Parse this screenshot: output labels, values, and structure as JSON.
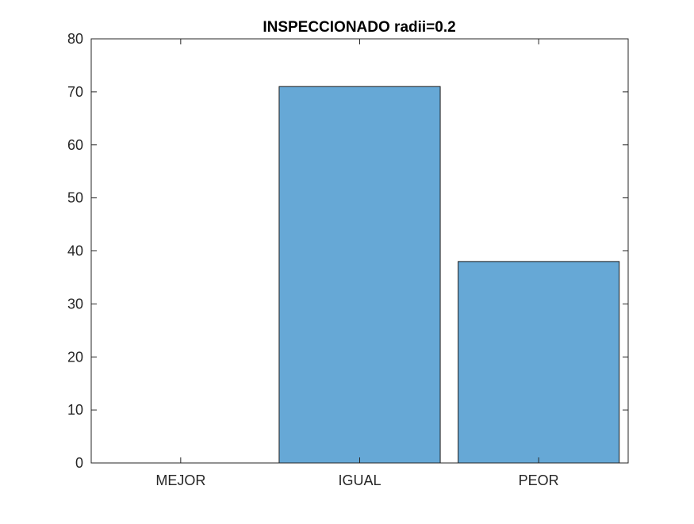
{
  "chart_data": {
    "type": "bar",
    "title": "INSPECCIONADO radii=0.2",
    "xlabel": "",
    "ylabel": "",
    "categories": [
      "MEJOR",
      "IGUAL",
      "PEOR"
    ],
    "values": [
      0,
      71,
      38
    ],
    "ylim": [
      0,
      80
    ],
    "yticks": [
      0,
      10,
      20,
      30,
      40,
      50,
      60,
      70,
      80
    ],
    "grid": false,
    "legend": "none",
    "colors": {
      "bar_fill": "#66a8d6",
      "bar_edge": "#1a1a1a",
      "axis": "#262626",
      "background": "#ffffff"
    }
  }
}
